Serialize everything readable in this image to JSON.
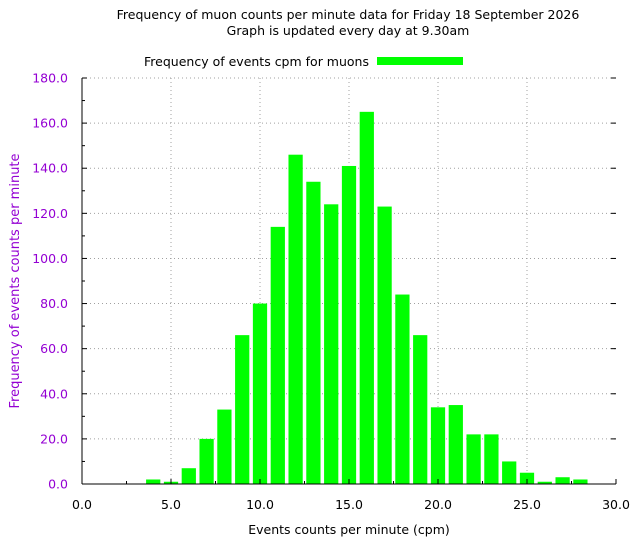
{
  "chart_data": {
    "type": "bar",
    "title": "Frequency of muon counts per minute data for Friday 18 September 2026",
    "subtitle": "Graph is updated every day at 9.30am",
    "xlabel": "Events counts per minute (cpm)",
    "ylabel": "Frequency of events counts per minute",
    "xlim": [
      0,
      30
    ],
    "ylim": [
      0,
      180
    ],
    "xticks": [
      "0.0",
      "5.0",
      "10.0",
      "15.0",
      "20.0",
      "25.0",
      "30.0"
    ],
    "yticks": [
      "0.0",
      "20.0",
      "40.0",
      "60.0",
      "80.0",
      "100.0",
      "120.0",
      "140.0",
      "160.0",
      "180.0"
    ],
    "grid": true,
    "legend_position": "top",
    "series": [
      {
        "name": "Frequency of events cpm for muons",
        "color": "#00ff00",
        "x": [
          4,
          5,
          6,
          7,
          8,
          9,
          10,
          11,
          12,
          13,
          14,
          15,
          16,
          17,
          18,
          19,
          20,
          21,
          22,
          23,
          24,
          25,
          26,
          27,
          28
        ],
        "values": [
          2,
          1,
          7,
          20,
          33,
          66,
          80,
          114,
          146,
          134,
          124,
          141,
          165,
          123,
          84,
          66,
          34,
          35,
          22,
          22,
          10,
          5,
          1,
          3,
          2
        ]
      }
    ],
    "colors": {
      "bars": "#00ff00",
      "ytick_text": "#9400d3",
      "ylabel_text": "#9400d3",
      "grid": "#a0a0a0"
    }
  }
}
